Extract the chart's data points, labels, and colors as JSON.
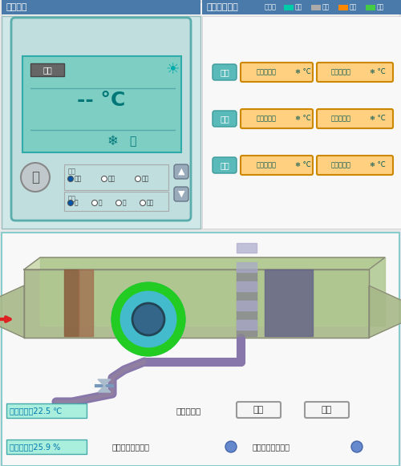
{
  "title_left": "控制面板",
  "title_right": "空调设备列表",
  "legend_label": "图例：",
  "legend_items": [
    {
      "label": "开前",
      "color": "#00CCAA"
    },
    {
      "label": "关闭",
      "color": "#AAAAAA"
    },
    {
      "label": "离线",
      "color": "#FF8800"
    },
    {
      "label": "故障",
      "color": "#44CC44"
    }
  ],
  "ac_status_label": "关闭",
  "ac_temp_display": "-- °C",
  "mode_label": "模式",
  "mode_options": [
    "制冷",
    "制热",
    "通风"
  ],
  "mode_selected": 0,
  "wind_label": "风速",
  "wind_options": [
    "大",
    "中",
    "小",
    "自动"
  ],
  "wind_selected": 0,
  "floors": [
    "一楼",
    "二楼",
    "三楼"
  ],
  "floor_east": [
    "一楼东空调",
    "二楼东空调",
    "三楼东空调"
  ],
  "floor_west": [
    "一楼西空调",
    "二楼西空调",
    "三楼西空调"
  ],
  "send_temp_label": "送风温度：",
  "send_temp_value": "22.5 ℃",
  "send_humidity_label": "送风湿度：",
  "send_humidity_value": "25.9 %",
  "work_state_label": "工作状态：",
  "auto_btn": "自动",
  "manual_btn": "手动",
  "fan_fault_label": "送风机故障报警：",
  "filter_fault_label": "过滤网阻塞报警：",
  "header_bg": "#4a7aaa",
  "header_text_color": "#ffffff",
  "panel_bg": "#b0ddd8",
  "display_bg": "#7ecec4",
  "floor_label_bg": "#7ecece",
  "floor_label_text": "#ffffff",
  "ac_btn_bg": "#ffd080",
  "ac_btn_border": "#cc8800",
  "ac_btn_text": "#005555",
  "bottom_bg": "#ffffff",
  "bottom_border": "#88cccc",
  "sensor_bg": "#cceeee",
  "sensor_text": "#0077aa"
}
